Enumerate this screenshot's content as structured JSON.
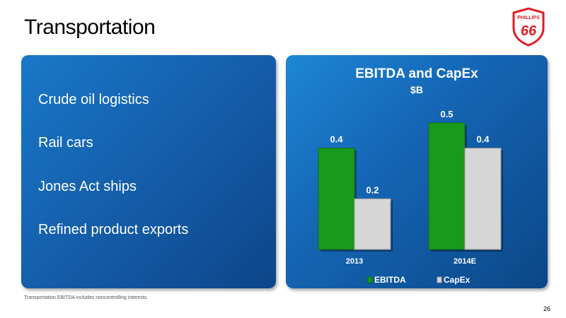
{
  "slide": {
    "title": "Transportation",
    "footnote": "Transportation EBITDA includes noncontrolling interests.",
    "page_number": "26"
  },
  "logo": {
    "text_top": "PHILLIPS",
    "text_main": "66",
    "icon": "phillips-66-shield-logo"
  },
  "bullets": [
    "Crude oil logistics",
    "Rail cars",
    "Jones Act ships",
    "Refined product exports"
  ],
  "colors": {
    "ebitda": "#1a9a1a",
    "capex": "#d6d6d6",
    "panel": "#1565b4",
    "logo_red": "#e31b23"
  },
  "chart_data": {
    "type": "bar",
    "title": "EBITDA and CapEx",
    "subtitle": "$B",
    "categories": [
      "2013",
      "2014E"
    ],
    "series": [
      {
        "name": "EBITDA",
        "values": [
          0.4,
          0.5
        ],
        "labels": [
          "0.4",
          "0.5"
        ]
      },
      {
        "name": "CapEx",
        "values": [
          0.2,
          0.4
        ],
        "labels": [
          "0.2",
          "0.4"
        ]
      }
    ],
    "ylim": [
      0,
      0.6
    ],
    "grid": false,
    "legend_position": "bottom"
  }
}
